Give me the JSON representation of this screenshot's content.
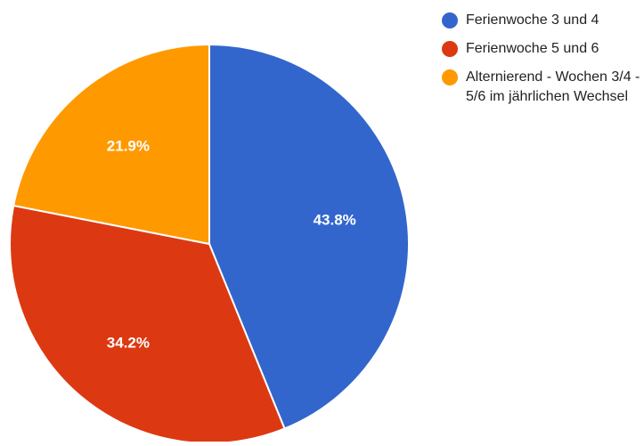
{
  "chart_data": {
    "type": "pie",
    "title": "",
    "legend_position": "right",
    "slices": [
      {
        "label": "Ferienwoche 3 und 4",
        "value": 43.8,
        "value_label": "43.8%",
        "color": "#3366cc"
      },
      {
        "label": "Ferienwoche 5 und 6",
        "value": 34.2,
        "value_label": "34.2%",
        "color": "#dc3912"
      },
      {
        "label": "Alternierend - Wochen 3/4 - 5/6 im jährlichen Wechsel",
        "value": 21.9,
        "value_label": "21.9%",
        "color": "#ff9900"
      }
    ]
  }
}
